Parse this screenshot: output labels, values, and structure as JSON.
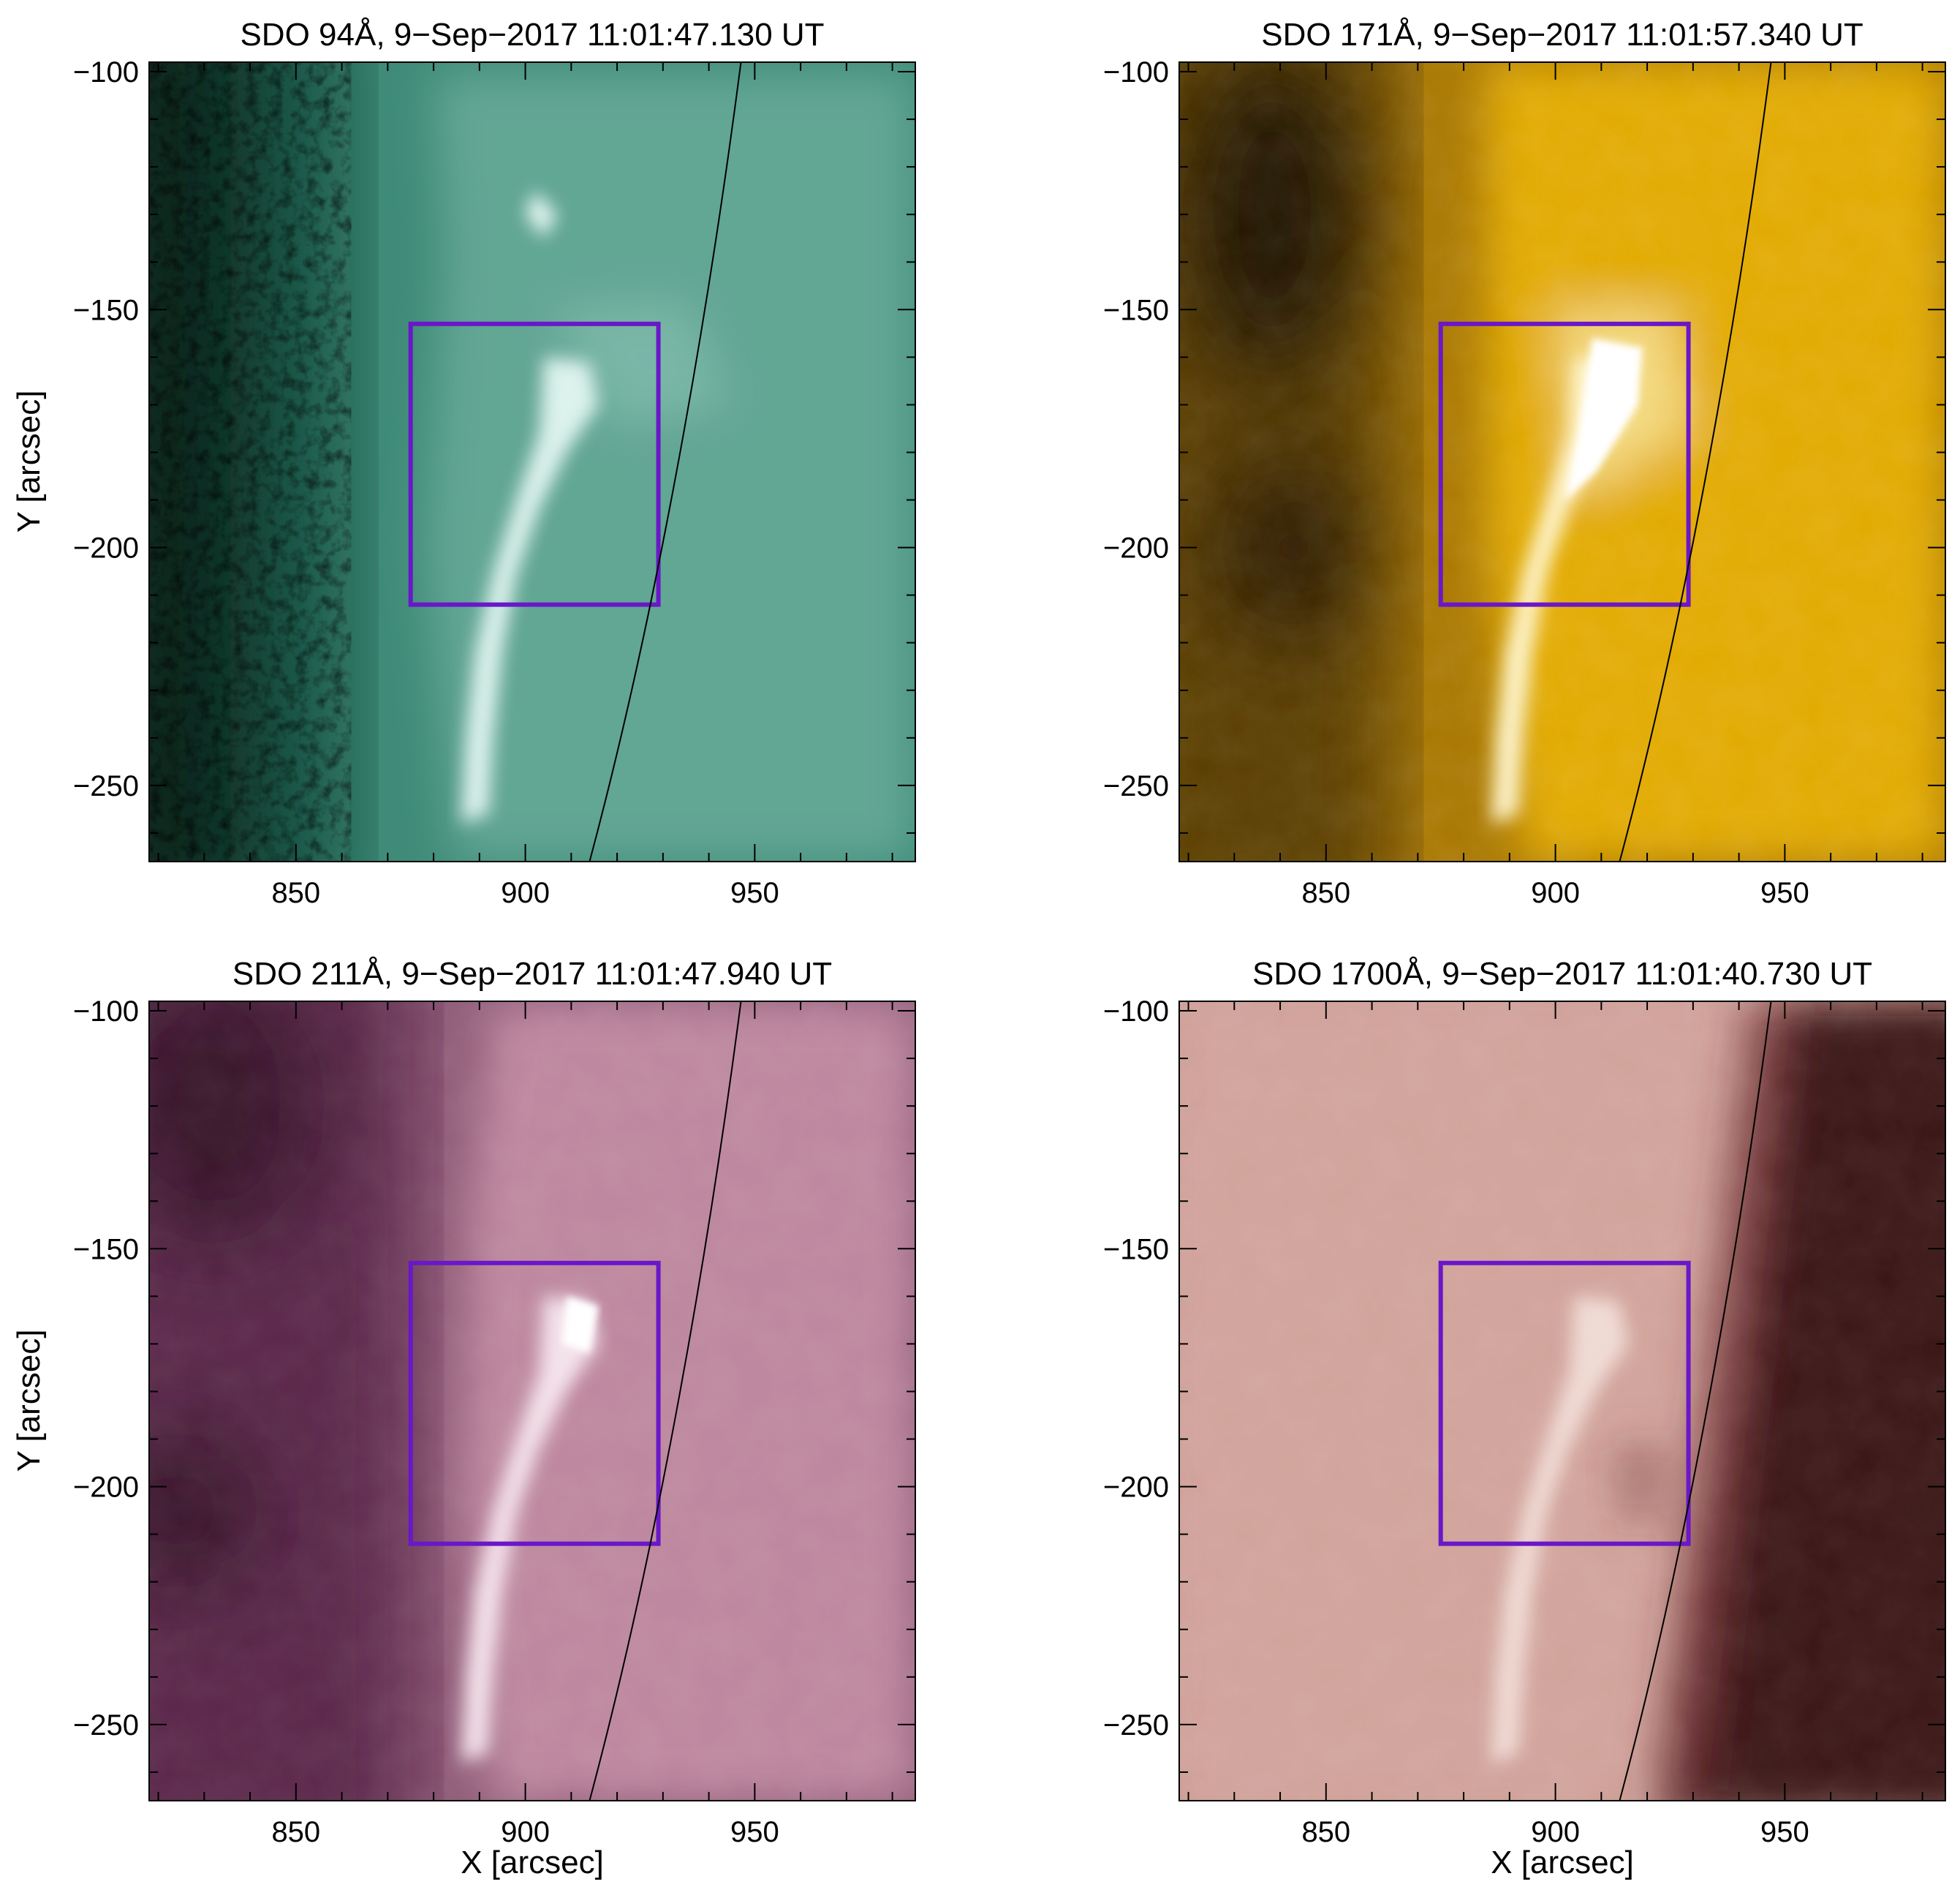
{
  "figure": {
    "axis_labels": {
      "x": "X [arcsec]",
      "y": "Y [arcsec]"
    },
    "colors": {
      "roi_box": "#6a17c9",
      "limb": "#000000"
    },
    "panels": [
      {
        "id": "aia94",
        "title": "SDO 94Å, 9−Sep−2017 11:01:47.130 UT",
        "colormap": [
          "#0a1a14",
          "#1f5a4a",
          "#3f8b78",
          "#7fbcab",
          "#e3f6f1"
        ],
        "show_ylabel": true,
        "show_xlabel": false
      },
      {
        "id": "aia171",
        "title": "SDO 171Å, 9−Sep−2017 11:01:57.340 UT",
        "colormap": [
          "#1b1100",
          "#5a3d00",
          "#a97700",
          "#f0b800",
          "#fff6cf"
        ],
        "show_ylabel": false,
        "show_xlabel": false
      },
      {
        "id": "aia211",
        "title": "SDO 211Å, 9−Sep−2017 11:01:47.940 UT",
        "colormap": [
          "#2a0e20",
          "#5a2748",
          "#8e5a77",
          "#c58fa6",
          "#f7e6ee"
        ],
        "show_ylabel": true,
        "show_xlabel": true
      },
      {
        "id": "aia1700",
        "title": "SDO 1700Å, 9−Sep−2017 11:01:40.730 UT",
        "colormap": [
          "#3a1416",
          "#6d2c2e",
          "#a56d67",
          "#d1a39b",
          "#f2dfd8"
        ],
        "show_ylabel": false,
        "show_xlabel": true
      }
    ],
    "x_axis": {
      "range": [
        818,
        985
      ],
      "ticks": [
        850,
        900,
        950
      ],
      "tick_labels": [
        "850",
        "900",
        "950"
      ],
      "minor_step": 10
    },
    "y_axis": {
      "range": [
        -266,
        -98
      ],
      "ticks": [
        -100,
        -150,
        -200,
        -250
      ],
      "tick_labels": [
        "−100",
        "−150",
        "−200",
        "−250"
      ],
      "minor_step": 10
    },
    "roi_box": {
      "x": [
        875,
        929
      ],
      "y": [
        -212,
        -153
      ]
    },
    "limb_curve": [
      [
        947,
        -98
      ],
      [
        940,
        -150
      ],
      [
        929,
        -212
      ],
      [
        914,
        -266
      ]
    ]
  }
}
